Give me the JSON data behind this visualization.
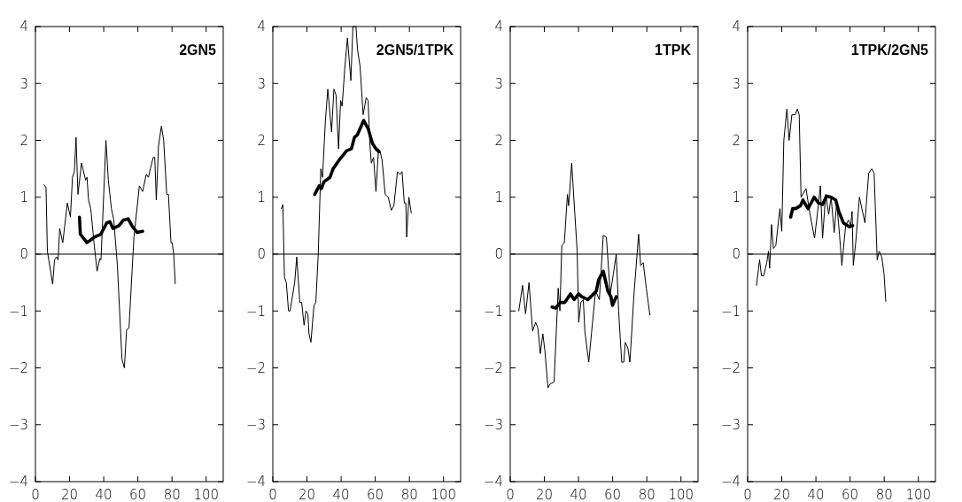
{
  "chart_data": [
    {
      "type": "line",
      "title": "2GN5",
      "xlim": [
        0,
        110
      ],
      "xticks": [
        0,
        20,
        40,
        60,
        80,
        100
      ],
      "ylim": [
        -4,
        4
      ],
      "yticks": [
        -4,
        -3,
        -2,
        -1,
        0,
        1,
        2,
        3,
        4
      ],
      "grid": false,
      "ref_lines": [
        {
          "axis": "y",
          "value": 0,
          "color": "#000000"
        }
      ],
      "series": [
        {
          "color": "#000000",
          "x": [
            5,
            6.2,
            7,
            10.1,
            11.2,
            12.5,
            13.3,
            14.2,
            16,
            18.7,
            20.5,
            21.7,
            22.8,
            23.8,
            24.9,
            27,
            29.4,
            30.2,
            31.1,
            32.4,
            34.3,
            36.1,
            37.7,
            38.4,
            41.3,
            42.7,
            44.5,
            45.9,
            48,
            50.7,
            52.1,
            53.4,
            54.8,
            56.6,
            57.7,
            60.9,
            62.8,
            64.9,
            66.2,
            67.3,
            69,
            69.9,
            70.8,
            72.1,
            73.8,
            75.1,
            76.9,
            77.9,
            79.4,
            80.1,
            81,
            81.9
          ],
          "values": [
            1.22,
            1.17,
            0.05,
            -0.53,
            -0.1,
            -0.05,
            -0.1,
            0.45,
            0.2,
            0.9,
            0.65,
            1.35,
            1.45,
            2.05,
            1.05,
            1.6,
            1.3,
            1.35,
            0.95,
            0.8,
            0.2,
            -0.3,
            -0.08,
            -0.1,
            2.0,
            1.3,
            0.8,
            0.6,
            -0.2,
            -1.85,
            -2.0,
            -1.33,
            -1.3,
            -0.3,
            0.3,
            1.2,
            1.1,
            1.4,
            1.35,
            1.5,
            1.7,
            1.7,
            0.95,
            1.9,
            2.25,
            2.0,
            1.05,
            1.05,
            0.2,
            0.2,
            0.0,
            -0.52
          ]
        },
        {
          "color": "#000000",
          "x": [
            25.8,
            26.3,
            30.2,
            34.7,
            38.3,
            41.8,
            43.6,
            45.4,
            48.9,
            51.6,
            54.3,
            56.9,
            59.6,
            62.8
          ],
          "values": [
            0.65,
            0.35,
            0.2,
            0.3,
            0.35,
            0.55,
            0.57,
            0.45,
            0.5,
            0.6,
            0.62,
            0.48,
            0.38,
            0.4
          ]
        }
      ]
    },
    {
      "type": "line",
      "title": "2GN5/1TPK",
      "xlim": [
        0,
        110
      ],
      "xticks": [
        0,
        20,
        40,
        60,
        80,
        100
      ],
      "ylim": [
        -4,
        4
      ],
      "yticks": [
        -4,
        -3,
        -2,
        -1,
        0,
        1,
        2,
        3,
        4
      ],
      "grid": false,
      "ref_lines": [
        {
          "axis": "y",
          "value": 0,
          "color": "#000000"
        }
      ],
      "series": [
        {
          "color": "#000000",
          "x": [
            5,
            5.9,
            6.8,
            7.9,
            9.2,
            10.1,
            12.8,
            14,
            15.8,
            16.9,
            18.3,
            19.4,
            20.5,
            21.2,
            22.3,
            24.1,
            25.2,
            26.6,
            28.1,
            29.1,
            30.8,
            32.2,
            34.4,
            35.8,
            37,
            38.5,
            39.7,
            40.6,
            42.1,
            43.7,
            45.7,
            46.9,
            48.7,
            49.6,
            51.1,
            52.9,
            54.7,
            55.8,
            56.8,
            57.7,
            59,
            60.4,
            61.9,
            62.9,
            64,
            65.8,
            67.6,
            69.4,
            70.9,
            73,
            74.5,
            75.7,
            77,
            77.9,
            78.4,
            79.7,
            81.1
          ],
          "values": [
            0.8,
            0.87,
            -0.4,
            -0.5,
            -1.0,
            -1.0,
            -0.5,
            -0.05,
            -0.85,
            -0.85,
            -1.25,
            -1.0,
            -1.05,
            -1.4,
            -1.55,
            -0.9,
            -0.85,
            0.0,
            1.5,
            1.35,
            2.35,
            2.9,
            2.15,
            2.9,
            2.8,
            1.85,
            2.7,
            2.6,
            3.25,
            3.8,
            3.05,
            4.0,
            4.0,
            3.6,
            3.3,
            2.45,
            2.75,
            2.7,
            1.95,
            1.6,
            1.7,
            1.1,
            1.85,
            1.8,
            1.65,
            1.05,
            1.0,
            0.77,
            0.85,
            1.45,
            1.4,
            1.45,
            0.9,
            0.9,
            0.3,
            1.0,
            0.72
          ]
        },
        {
          "color": "#000000",
          "x": [
            24.5,
            27.2,
            28.4,
            29.9,
            33.5,
            35.3,
            38.8,
            43.3,
            46,
            47.8,
            49.6,
            53.2,
            55.9,
            58.3,
            60.4,
            62.2
          ],
          "values": [
            1.05,
            1.2,
            1.15,
            1.27,
            1.35,
            1.5,
            1.65,
            1.82,
            1.85,
            2.05,
            2.1,
            2.35,
            2.2,
            1.95,
            1.85,
            1.8
          ]
        }
      ]
    },
    {
      "type": "line",
      "title": "1TPK",
      "xlim": [
        0,
        110
      ],
      "xticks": [
        0,
        20,
        40,
        60,
        80,
        100
      ],
      "ylim": [
        -4,
        4
      ],
      "yticks": [
        -4,
        -3,
        -2,
        -1,
        0,
        1,
        2,
        3,
        4
      ],
      "grid": false,
      "ref_lines": [
        {
          "axis": "y",
          "value": 0,
          "color": "#000000"
        }
      ],
      "series": [
        {
          "color": "#000000",
          "x": [
            5,
            7.2,
            9,
            11,
            13.1,
            14.9,
            16.2,
            17.6,
            19.1,
            20.3,
            22.1,
            23.4,
            25.7,
            28.1,
            29.1,
            30.2,
            31.7,
            33.5,
            34.2,
            36,
            39.2,
            40.1,
            41.4,
            42.8,
            43.7,
            46,
            48.2,
            50,
            52.2,
            54.5,
            56.3,
            58.6,
            60.4,
            62.1,
            63.5,
            65.3,
            66.5,
            67.4,
            68.9,
            70.1,
            72.5,
            75.2,
            76.4,
            77.9,
            79.7,
            81.8
          ],
          "values": [
            -1.0,
            -0.55,
            -1.05,
            -0.5,
            -1.35,
            -1.2,
            -1.3,
            -1.75,
            -1.4,
            -1.7,
            -2.35,
            -2.28,
            -2.25,
            -0.6,
            -1.0,
            0.15,
            0.2,
            1.05,
            0.85,
            1.6,
            0.05,
            -1.2,
            -0.85,
            -0.8,
            -1.35,
            -1.9,
            -1.2,
            -0.65,
            -0.8,
            0.33,
            0.3,
            -0.7,
            -0.35,
            0.0,
            -1.0,
            -1.9,
            -1.9,
            -1.55,
            -1.65,
            -1.9,
            -0.7,
            0.35,
            -0.2,
            -0.15,
            -0.6,
            -1.07
          ]
        },
        {
          "color": "#000000",
          "x": [
            24.5,
            26.6,
            29.3,
            32,
            35.3,
            37.4,
            40.1,
            41.9,
            45.5,
            48.2,
            50.4,
            51.8,
            54.5,
            57.2,
            59,
            59.9,
            62.1
          ],
          "values": [
            -0.93,
            -0.95,
            -0.85,
            -0.85,
            -0.7,
            -0.8,
            -0.7,
            -0.75,
            -0.8,
            -0.72,
            -0.65,
            -0.45,
            -0.3,
            -0.65,
            -0.75,
            -0.9,
            -0.75
          ]
        }
      ]
    },
    {
      "type": "line",
      "title": "1TPK/2GN5",
      "xlim": [
        0,
        110
      ],
      "xticks": [
        0,
        20,
        40,
        60,
        80,
        100
      ],
      "ylim": [
        -4,
        4
      ],
      "yticks": [
        -4,
        -3,
        -2,
        -1,
        0,
        1,
        2,
        3,
        4
      ],
      "grid": false,
      "ref_lines": [
        {
          "axis": "y",
          "value": 0,
          "color": "#000000"
        }
      ],
      "series": [
        {
          "color": "#000000",
          "x": [
            5.2,
            7,
            8.1,
            9.4,
            11.2,
            12.2,
            12.9,
            14,
            15.1,
            16.5,
            18.9,
            20,
            21.2,
            23,
            24.3,
            25.9,
            27.9,
            29.1,
            30.2,
            31.3,
            34.2,
            36,
            37.8,
            39.2,
            41,
            42.6,
            43.9,
            45.7,
            47.5,
            48.9,
            50.7,
            52.2,
            53.8,
            55.2,
            57.4,
            59,
            60.3,
            61.2,
            61.9,
            63.3,
            65.5,
            68.7,
            70.9,
            72.7,
            74.1,
            75.9,
            77,
            78.6,
            79.9,
            80.9
          ],
          "values": [
            -0.55,
            -0.1,
            -0.38,
            -0.38,
            -0.15,
            0.05,
            -0.25,
            0.52,
            0.1,
            0.15,
            0.8,
            0.4,
            2.0,
            2.55,
            2.0,
            2.45,
            2.45,
            2.55,
            2.45,
            1.0,
            1.15,
            0.8,
            0.5,
            0.28,
            0.75,
            1.2,
            0.28,
            1.05,
            0.7,
            1.0,
            0.38,
            0.9,
            0.35,
            -0.2,
            0.5,
            0.6,
            0.5,
            0.75,
            -0.2,
            0.2,
            1.0,
            0.55,
            1.42,
            1.5,
            1.42,
            -0.1,
            0.05,
            -0.05,
            -0.35,
            -0.83
          ]
        },
        {
          "color": "#000000",
          "x": [
            25.2,
            26.4,
            28.2,
            30.9,
            32.4,
            35.4,
            39,
            41.4,
            43.9,
            46.2,
            48.9,
            51.6,
            53.4,
            56.1,
            59.7,
            61.5
          ],
          "values": [
            0.65,
            0.8,
            0.8,
            0.85,
            0.95,
            0.8,
            1.0,
            0.9,
            0.87,
            1.02,
            1.0,
            0.95,
            0.75,
            0.55,
            0.48,
            0.5
          ]
        }
      ]
    }
  ]
}
